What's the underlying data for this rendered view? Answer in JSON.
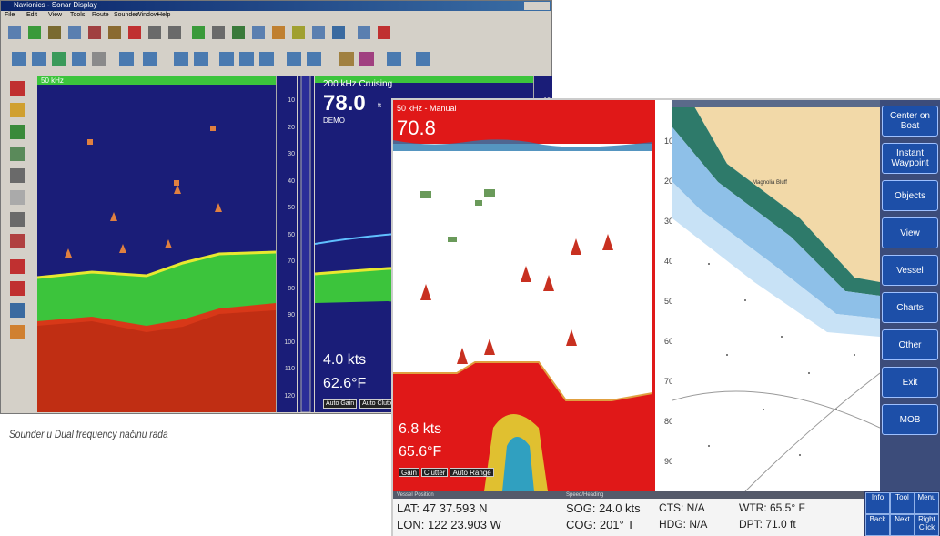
{
  "left_window": {
    "title": "Navionics - Sonar Display",
    "menu": [
      "File",
      "Edit",
      "View",
      "Tools",
      "Route",
      "Sounder",
      "Window",
      "Help"
    ],
    "left_pane_header": "50 kHz",
    "right_pane_header": "200 kHz Cruising",
    "depth": "78.0",
    "depth_unit": "ft",
    "mode": "DEMO",
    "speed": "4.0 kts",
    "temperature": "62.6°F",
    "buttons": [
      "Auto Gain",
      "Auto Clutter"
    ],
    "scale": [
      "10",
      "20",
      "30",
      "40",
      "50",
      "60",
      "70",
      "80",
      "90",
      "100",
      "110",
      "120"
    ]
  },
  "caption": "Sounder u Dual frequency načinu rada",
  "right_window": {
    "sonar_header": "50 kHz - Manual",
    "depth": "70.8",
    "speed": "6.8 kts",
    "temperature": "65.6°F",
    "buttons": [
      "Gain",
      "Clutter",
      "Auto Range"
    ],
    "scale": [
      "10",
      "20",
      "30",
      "40",
      "50",
      "60",
      "70",
      "80",
      "90"
    ],
    "map_label": "Magnolia Bluff",
    "menu_buttons": [
      "Center on Boat",
      "Instant Waypoint",
      "Objects",
      "View",
      "Vessel",
      "Charts",
      "Other",
      "Exit",
      "MOB"
    ],
    "status": {
      "position_title": "Vessel Position",
      "lat": "LAT: 47 37.593 N",
      "lon": "LON: 122 23.903 W",
      "speed_title": "Speed/Heading",
      "sog": "SOG: 24.0 kts",
      "cog": "COG: 201° T",
      "cts": "CTS: N/A",
      "hdg": "HDG: N/A",
      "wtr": "WTR: 65.5° F",
      "dpt": "DPT: 71.0 ft"
    },
    "soft_keys": [
      "Info",
      "Tool",
      "Menu",
      "Back",
      "Next",
      "Right Click"
    ]
  }
}
